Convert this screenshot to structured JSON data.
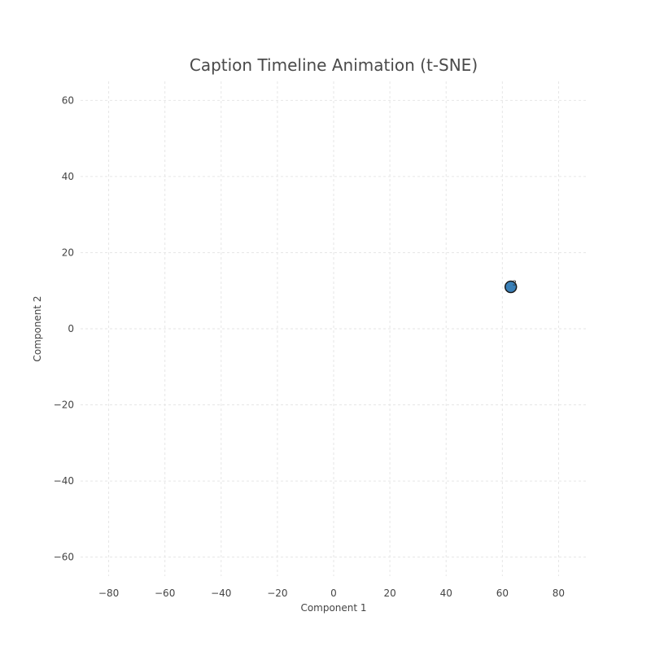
{
  "chart_data": {
    "type": "scatter",
    "title": "Caption Timeline Animation (t-SNE)",
    "xlabel": "Component 1",
    "ylabel": "Component 2",
    "xlim": [
      -90,
      90
    ],
    "ylim": [
      -65,
      65
    ],
    "xticks": [
      -80,
      -60,
      -40,
      -20,
      0,
      20,
      40,
      60,
      80
    ],
    "yticks": [
      -60,
      -40,
      -20,
      0,
      20,
      40,
      60
    ],
    "grid": true,
    "series": [
      {
        "color": "#3a80b8",
        "points": [
          {
            "x": 63,
            "y": 11,
            "label": "3"
          }
        ]
      }
    ]
  }
}
